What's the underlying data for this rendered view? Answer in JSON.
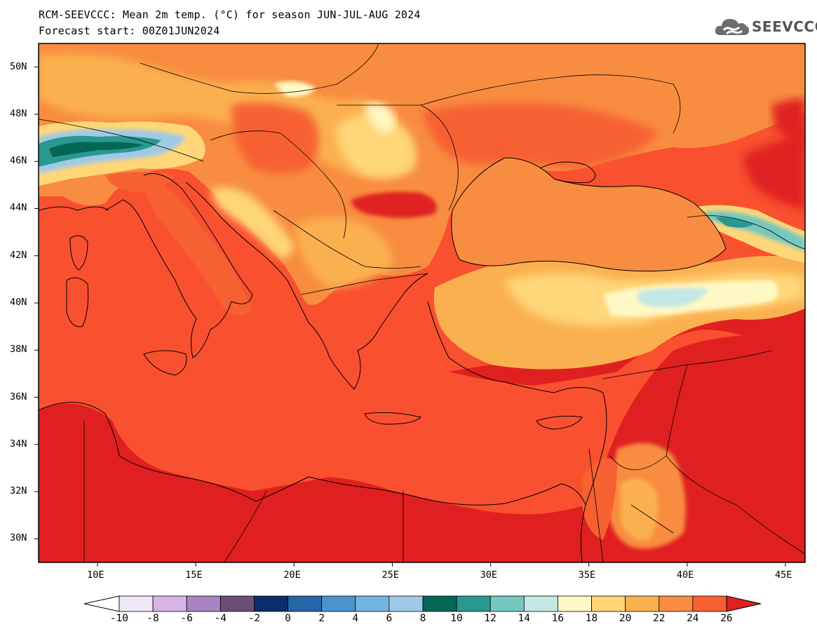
{
  "header": {
    "title_line1": "RCM-SEEVCCC: Mean 2m temp. (°C) for season JUN-JUL-AUG 2024",
    "title_line2": "Forecast start: 00Z01JUN2024",
    "logo_text": "SEEVCCC"
  },
  "map": {
    "lon_range": [
      7,
      46
    ],
    "lat_range": [
      29,
      51
    ],
    "background_color": "#f95030",
    "lat_labels": [
      "50N",
      "48N",
      "46N",
      "44N",
      "42N",
      "40N",
      "38N",
      "36N",
      "34N",
      "32N",
      "30N"
    ],
    "lon_labels": [
      "10E",
      "15E",
      "20E",
      "25E",
      "30E",
      "35E",
      "40E",
      "45E"
    ]
  },
  "colorbar": {
    "labels": [
      "-10",
      "-8",
      "-6",
      "-4",
      "-2",
      "0",
      "2",
      "4",
      "6",
      "8",
      "10",
      "12",
      "14",
      "16",
      "18",
      "20",
      "22",
      "24",
      "26"
    ],
    "under_color": "#ffffff",
    "over_color": "#dd2020",
    "colors": [
      "#efe6f6",
      "#d8b4e6",
      "#a884c4",
      "#6c4e74",
      "#0a2e6a",
      "#2466a8",
      "#4a94cc",
      "#74b4e0",
      "#9ecae6",
      "#046654",
      "#2a9890",
      "#74c8c0",
      "#c4e6e4",
      "#fff8c4",
      "#ffd678",
      "#fbb050",
      "#f88c40",
      "#f76030"
    ]
  }
}
